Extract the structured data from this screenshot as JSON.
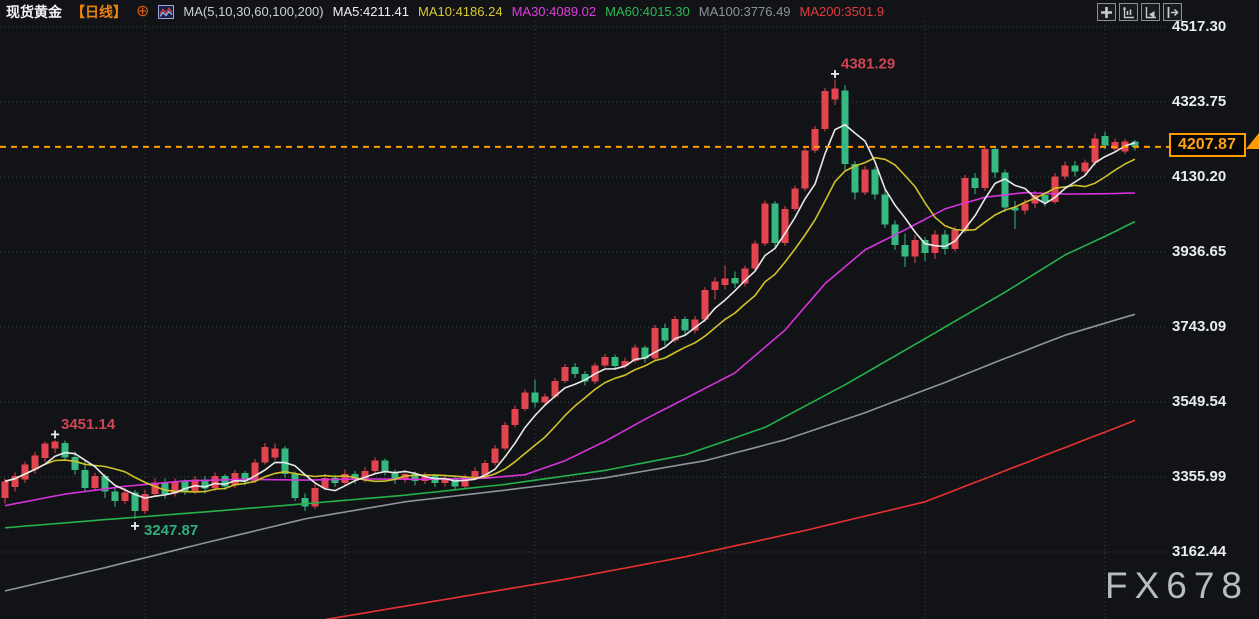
{
  "header": {
    "symbol": "现货黄金",
    "period": "【日线】",
    "add_icon": "⊕",
    "ma_group_label": "MA(5,10,30,60,100,200)",
    "ma_items": [
      {
        "name": "MA5",
        "label": "MA5:4211.41",
        "color": "#eef0f2"
      },
      {
        "name": "MA10",
        "label": "MA10:4186.24",
        "color": "#d9ca2e"
      },
      {
        "name": "MA30",
        "label": "MA30:4089.02",
        "color": "#e03ce0"
      },
      {
        "name": "MA60",
        "label": "MA60:4015.30",
        "color": "#2eb854"
      },
      {
        "name": "MA100",
        "label": "MA100:3776.49",
        "color": "#8e939b"
      },
      {
        "name": "MA200",
        "label": "MA200:3501.9",
        "color": "#e23b3b"
      }
    ]
  },
  "toolbar": {
    "icons": [
      {
        "name": "crosshair-tool-icon"
      },
      {
        "name": "main-chart-panel-icon"
      },
      {
        "name": "indicator-panel-icon"
      },
      {
        "name": "collapse-panel-icon"
      }
    ]
  },
  "axis": {
    "tick_labels": [
      "4517.30",
      "4323.75",
      "4130.20",
      "3936.65",
      "3743.09",
      "3549.54",
      "3355.99",
      "3162.44"
    ]
  },
  "price_tag": {
    "label": "4207.87",
    "color": "#ff9a00"
  },
  "watermark": "FX678",
  "chart_data": {
    "type": "candlestick",
    "title": "现货黄金 日线",
    "up_color": "#e2454f",
    "down_color": "#36b981",
    "grid_color": "#3c4046",
    "y_ticks": [
      4517.3,
      4323.75,
      4130.2,
      3936.65,
      3743.09,
      3549.54,
      3355.99,
      3162.44
    ],
    "x_gridline_indices": [
      14,
      34,
      53,
      72,
      92,
      110
    ],
    "current_price": 4207.87,
    "swing_labels": [
      {
        "text": "4381.29",
        "price": 4381.29,
        "index": 83,
        "side": "high",
        "color": "#cf4553"
      },
      {
        "text": "3451.14",
        "price": 3451.14,
        "index": 5,
        "side": "high",
        "color": "#cf4553"
      },
      {
        "text": "3247.87",
        "price": 3247.87,
        "index": 13,
        "side": "low",
        "color": "#2fae7d"
      }
    ],
    "ma_overlays": [
      {
        "name": "MA5",
        "color": "#e8e8e8",
        "window": 5
      },
      {
        "name": "MA10",
        "color": "#cfc22a",
        "window": 10
      },
      {
        "name": "MA30",
        "color": "#d633dd",
        "points": [
          [
            0,
            3282
          ],
          [
            6,
            3312
          ],
          [
            12,
            3332
          ],
          [
            18,
            3346
          ],
          [
            24,
            3350
          ],
          [
            30,
            3348
          ],
          [
            36,
            3351
          ],
          [
            42,
            3350
          ],
          [
            48,
            3353
          ],
          [
            52,
            3362
          ],
          [
            56,
            3398
          ],
          [
            60,
            3448
          ],
          [
            64,
            3505
          ],
          [
            68,
            3558
          ],
          [
            73,
            3625
          ],
          [
            78,
            3735
          ],
          [
            82,
            3855
          ],
          [
            86,
            3942
          ],
          [
            90,
            3994
          ],
          [
            94,
            4048
          ],
          [
            98,
            4078
          ],
          [
            102,
            4090
          ],
          [
            106,
            4086
          ],
          [
            110,
            4087
          ],
          [
            113,
            4089
          ]
        ]
      },
      {
        "name": "MA60",
        "color": "#25b14b",
        "points": [
          [
            0,
            3225
          ],
          [
            10,
            3246
          ],
          [
            20,
            3266
          ],
          [
            30,
            3287
          ],
          [
            40,
            3309
          ],
          [
            50,
            3337
          ],
          [
            60,
            3373
          ],
          [
            68,
            3413
          ],
          [
            76,
            3484
          ],
          [
            84,
            3594
          ],
          [
            92,
            3713
          ],
          [
            100,
            3833
          ],
          [
            106,
            3929
          ],
          [
            110,
            3977
          ],
          [
            113,
            4015
          ]
        ]
      },
      {
        "name": "MA100",
        "color": "#8f949c",
        "points": [
          [
            0,
            3062
          ],
          [
            10,
            3122
          ],
          [
            20,
            3186
          ],
          [
            30,
            3248
          ],
          [
            40,
            3292
          ],
          [
            50,
            3322
          ],
          [
            60,
            3354
          ],
          [
            70,
            3398
          ],
          [
            78,
            3452
          ],
          [
            86,
            3522
          ],
          [
            94,
            3600
          ],
          [
            100,
            3662
          ],
          [
            106,
            3722
          ],
          [
            113,
            3776
          ]
        ]
      },
      {
        "name": "MA200",
        "color": "#e93131",
        "points": [
          [
            32,
            2988
          ],
          [
            44,
            3040
          ],
          [
            56,
            3092
          ],
          [
            68,
            3150
          ],
          [
            80,
            3218
          ],
          [
            92,
            3292
          ],
          [
            102,
            3392
          ],
          [
            108,
            3452
          ],
          [
            113,
            3502
          ]
        ]
      }
    ],
    "candles": [
      [
        3302,
        3352,
        3288,
        3345
      ],
      [
        3330,
        3368,
        3318,
        3358
      ],
      [
        3350,
        3396,
        3340,
        3388
      ],
      [
        3375,
        3420,
        3365,
        3412
      ],
      [
        3405,
        3448,
        3395,
        3442
      ],
      [
        3430,
        3451.14,
        3418,
        3447
      ],
      [
        3444,
        3450,
        3398,
        3406
      ],
      [
        3408,
        3422,
        3362,
        3374
      ],
      [
        3374,
        3398,
        3316,
        3328
      ],
      [
        3328,
        3366,
        3320,
        3358
      ],
      [
        3358,
        3364,
        3302,
        3318
      ],
      [
        3318,
        3330,
        3278,
        3294
      ],
      [
        3294,
        3328,
        3286,
        3316
      ],
      [
        3316,
        3322,
        3247.87,
        3268
      ],
      [
        3268,
        3322,
        3260,
        3312
      ],
      [
        3312,
        3354,
        3304,
        3342
      ],
      [
        3342,
        3352,
        3300,
        3312
      ],
      [
        3314,
        3352,
        3306,
        3344
      ],
      [
        3344,
        3350,
        3310,
        3320
      ],
      [
        3320,
        3358,
        3312,
        3350
      ],
      [
        3350,
        3358,
        3314,
        3326
      ],
      [
        3328,
        3368,
        3320,
        3358
      ],
      [
        3358,
        3364,
        3322,
        3332
      ],
      [
        3334,
        3374,
        3328,
        3366
      ],
      [
        3366,
        3372,
        3334,
        3344
      ],
      [
        3346,
        3402,
        3340,
        3394
      ],
      [
        3394,
        3444,
        3388,
        3434
      ],
      [
        3406,
        3442,
        3398,
        3430
      ],
      [
        3430,
        3436,
        3354,
        3364
      ],
      [
        3364,
        3370,
        3294,
        3302
      ],
      [
        3302,
        3314,
        3268,
        3280
      ],
      [
        3280,
        3338,
        3274,
        3328
      ],
      [
        3328,
        3364,
        3322,
        3354
      ],
      [
        3354,
        3362,
        3330,
        3340
      ],
      [
        3340,
        3374,
        3332,
        3364
      ],
      [
        3364,
        3372,
        3338,
        3348
      ],
      [
        3348,
        3382,
        3342,
        3372
      ],
      [
        3372,
        3406,
        3364,
        3398
      ],
      [
        3398,
        3404,
        3360,
        3368
      ],
      [
        3368,
        3376,
        3338,
        3350
      ],
      [
        3350,
        3374,
        3342,
        3364
      ],
      [
        3364,
        3370,
        3334,
        3346
      ],
      [
        3346,
        3368,
        3338,
        3358
      ],
      [
        3358,
        3364,
        3330,
        3340
      ],
      [
        3340,
        3362,
        3332,
        3352
      ],
      [
        3352,
        3358,
        3322,
        3332
      ],
      [
        3332,
        3362,
        3326,
        3355
      ],
      [
        3355,
        3380,
        3348,
        3372
      ],
      [
        3360,
        3400,
        3354,
        3392
      ],
      [
        3392,
        3438,
        3386,
        3430
      ],
      [
        3430,
        3498,
        3424,
        3490
      ],
      [
        3490,
        3540,
        3484,
        3532
      ],
      [
        3532,
        3582,
        3526,
        3574
      ],
      [
        3574,
        3608,
        3536,
        3548
      ],
      [
        3548,
        3572,
        3540,
        3564
      ],
      [
        3564,
        3612,
        3558,
        3604
      ],
      [
        3604,
        3648,
        3598,
        3640
      ],
      [
        3640,
        3650,
        3612,
        3622
      ],
      [
        3622,
        3630,
        3592,
        3602
      ],
      [
        3602,
        3652,
        3596,
        3644
      ],
      [
        3644,
        3674,
        3638,
        3666
      ],
      [
        3666,
        3672,
        3632,
        3642
      ],
      [
        3642,
        3664,
        3636,
        3656
      ],
      [
        3656,
        3698,
        3650,
        3690
      ],
      [
        3690,
        3696,
        3652,
        3662
      ],
      [
        3662,
        3748,
        3656,
        3740
      ],
      [
        3740,
        3752,
        3696,
        3708
      ],
      [
        3708,
        3772,
        3702,
        3764
      ],
      [
        3764,
        3770,
        3722,
        3734
      ],
      [
        3734,
        3772,
        3726,
        3762
      ],
      [
        3762,
        3846,
        3756,
        3838
      ],
      [
        3838,
        3872,
        3814,
        3860
      ],
      [
        3852,
        3902,
        3840,
        3868
      ],
      [
        3870,
        3886,
        3844,
        3856
      ],
      [
        3856,
        3902,
        3848,
        3894
      ],
      [
        3894,
        3966,
        3888,
        3958
      ],
      [
        3958,
        4070,
        3952,
        4062
      ],
      [
        4062,
        4068,
        3946,
        3960
      ],
      [
        3960,
        4056,
        3952,
        4048
      ],
      [
        4048,
        4108,
        4042,
        4100
      ],
      [
        4100,
        4206,
        4094,
        4198
      ],
      [
        4198,
        4262,
        4192,
        4254
      ],
      [
        4254,
        4360,
        4248,
        4352
      ],
      [
        4330,
        4381.29,
        4316,
        4358
      ],
      [
        4354,
        4368,
        4148,
        4164
      ],
      [
        4164,
        4172,
        4072,
        4090
      ],
      [
        4090,
        4158,
        4084,
        4150
      ],
      [
        4150,
        4156,
        4072,
        4085
      ],
      [
        4085,
        4095,
        3998,
        4008
      ],
      [
        4008,
        4018,
        3942,
        3955
      ],
      [
        3955,
        3985,
        3898,
        3925
      ],
      [
        3925,
        3980,
        3908,
        3968
      ],
      [
        3968,
        3976,
        3914,
        3934
      ],
      [
        3934,
        3992,
        3918,
        3982
      ],
      [
        3982,
        3994,
        3930,
        3945
      ],
      [
        3945,
        4002,
        3938,
        3994
      ],
      [
        3994,
        4136,
        3986,
        4128
      ],
      [
        4128,
        4140,
        4086,
        4102
      ],
      [
        4102,
        4210,
        4094,
        4202
      ],
      [
        4202,
        4208,
        4128,
        4142
      ],
      [
        4142,
        4150,
        4040,
        4052
      ],
      [
        4052,
        4068,
        3996,
        4044
      ],
      [
        4044,
        4072,
        4034,
        4062
      ],
      [
        4062,
        4094,
        4050,
        4084
      ],
      [
        4084,
        4092,
        4054,
        4066
      ],
      [
        4066,
        4140,
        4060,
        4132
      ],
      [
        4132,
        4170,
        4124,
        4160
      ],
      [
        4160,
        4172,
        4132,
        4144
      ],
      [
        4144,
        4176,
        4136,
        4168
      ],
      [
        4168,
        4242,
        4160,
        4230
      ],
      [
        4236,
        4248,
        4202,
        4212
      ],
      [
        4202,
        4230,
        4194,
        4220
      ],
      [
        4196,
        4228,
        4190,
        4222
      ],
      [
        4222,
        4226,
        4198,
        4207.87
      ]
    ]
  }
}
